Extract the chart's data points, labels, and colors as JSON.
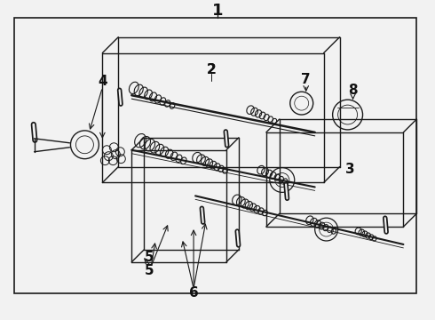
{
  "bg_color": "#f2f2f2",
  "line_color": "#1a1a1a",
  "text_color": "#111111",
  "figsize": [
    4.9,
    3.6
  ],
  "dpi": 100
}
